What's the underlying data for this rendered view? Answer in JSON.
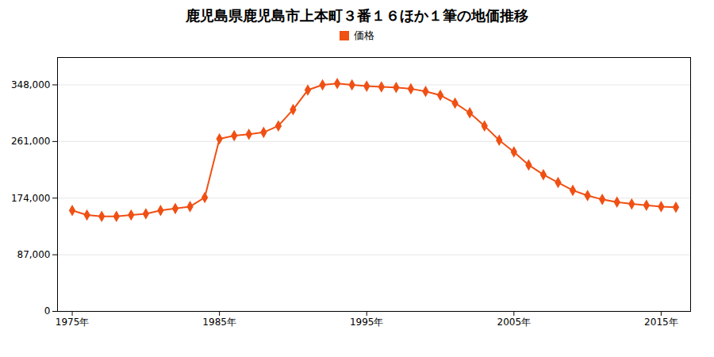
{
  "chart_data": {
    "type": "line",
    "title": "鹿児島県鹿児島市上本町３番１６ほか１筆の地価推移",
    "x": [
      1975,
      1976,
      1977,
      1978,
      1979,
      1980,
      1981,
      1982,
      1983,
      1984,
      1985,
      1986,
      1987,
      1988,
      1989,
      1990,
      1991,
      1992,
      1993,
      1994,
      1995,
      1996,
      1997,
      1998,
      1999,
      2000,
      2001,
      2002,
      2003,
      2004,
      2005,
      2006,
      2007,
      2008,
      2009,
      2010,
      2011,
      2012,
      2013,
      2014,
      2015,
      2016
    ],
    "series": [
      {
        "name": "価格",
        "color": "#f05014",
        "marker": "diamond",
        "values": [
          155000,
          148000,
          146000,
          146000,
          148000,
          150000,
          155000,
          158000,
          161000,
          175000,
          265000,
          270000,
          272000,
          275000,
          285000,
          310000,
          340000,
          348000,
          350000,
          348000,
          346000,
          345000,
          344000,
          342000,
          338000,
          332000,
          320000,
          305000,
          285000,
          263000,
          245000,
          225000,
          210000,
          198000,
          186000,
          178000,
          172000,
          168000,
          165000,
          163000,
          161000,
          160000
        ]
      }
    ],
    "xlim": [
      1974,
      2017
    ],
    "xticks": [
      {
        "value": 1975,
        "label": "1975年"
      },
      {
        "value": 1985,
        "label": "1985年"
      },
      {
        "value": 1995,
        "label": "1995年"
      },
      {
        "value": 2005,
        "label": "2005年"
      },
      {
        "value": 2015,
        "label": "2015年"
      }
    ],
    "ylim": [
      0,
      390000
    ],
    "yticks": [
      0,
      {
        "value": 87000,
        "label": "87,000"
      },
      {
        "value": 174000,
        "label": "174,000"
      },
      {
        "value": 261000,
        "label": "261,000"
      },
      {
        "value": 348000,
        "label": "348,000"
      }
    ],
    "grid": "y",
    "legend": "top"
  }
}
